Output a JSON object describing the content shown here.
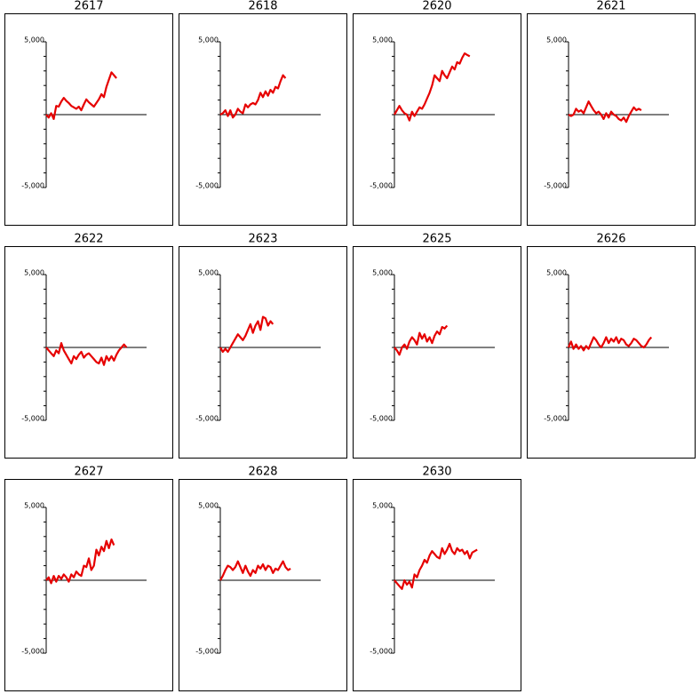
{
  "chart_data": [
    {
      "type": "line",
      "title": "2617",
      "xlim": [
        0,
        40
      ],
      "ylim": [
        -5000,
        5000
      ],
      "yticks": [
        {
          "value": 5000,
          "label": "5,000"
        },
        {
          "value": -5000,
          "label": "-5,000"
        }
      ],
      "minor_yticks": [
        -4000,
        -3000,
        -2000,
        -1000,
        0,
        1000,
        2000,
        3000,
        4000
      ],
      "series": [
        {
          "color": "#e60000",
          "values": [
            0,
            -200,
            100,
            -300,
            600,
            550,
            900,
            1150,
            950,
            800,
            600,
            500,
            400,
            550,
            300,
            700,
            1050,
            850,
            700,
            550,
            800,
            1050,
            1400,
            1200,
            1900,
            2400,
            2900,
            2700,
            2500
          ]
        }
      ]
    },
    {
      "type": "line",
      "title": "2618",
      "xlim": [
        0,
        40
      ],
      "ylim": [
        -5000,
        5000
      ],
      "yticks": [
        {
          "value": 5000,
          "label": "5,000"
        },
        {
          "value": -5000,
          "label": "-5,000"
        }
      ],
      "minor_yticks": [
        -4000,
        -3000,
        -2000,
        -1000,
        0,
        1000,
        2000,
        3000,
        4000
      ],
      "series": [
        {
          "color": "#e60000",
          "values": [
            0,
            100,
            300,
            -100,
            300,
            -200,
            0,
            400,
            200,
            100,
            700,
            500,
            700,
            800,
            700,
            1000,
            1500,
            1200,
            1600,
            1300,
            1700,
            1500,
            1900,
            1800,
            2300,
            2700,
            2500
          ]
        }
      ]
    },
    {
      "type": "line",
      "title": "2620",
      "xlim": [
        0,
        40
      ],
      "ylim": [
        -5000,
        5000
      ],
      "yticks": [
        {
          "value": 5000,
          "label": "5,000"
        },
        {
          "value": -5000,
          "label": "-5,000"
        }
      ],
      "minor_yticks": [
        -4000,
        -3000,
        -2000,
        -1000,
        0,
        1000,
        2000,
        3000,
        4000
      ],
      "series": [
        {
          "color": "#e60000",
          "values": [
            0,
            300,
            600,
            300,
            100,
            0,
            -400,
            200,
            -100,
            200,
            500,
            400,
            700,
            1100,
            1500,
            2000,
            2700,
            2500,
            2300,
            3000,
            2700,
            2500,
            2900,
            3300,
            3100,
            3600,
            3500,
            3900,
            4200,
            4100,
            4000
          ]
        }
      ]
    },
    {
      "type": "line",
      "title": "2621",
      "xlim": [
        0,
        40
      ],
      "ylim": [
        -5000,
        5000
      ],
      "yticks": [
        {
          "value": 5000,
          "label": "5,000"
        },
        {
          "value": -5000,
          "label": "-5,000"
        }
      ],
      "minor_yticks": [
        -4000,
        -3000,
        -2000,
        -1000,
        0,
        1000,
        2000,
        3000,
        4000
      ],
      "series": [
        {
          "color": "#e60000",
          "values": [
            0,
            -100,
            0,
            400,
            200,
            300,
            100,
            500,
            900,
            600,
            300,
            100,
            200,
            0,
            -300,
            100,
            -200,
            200,
            0,
            -100,
            -300,
            -400,
            -200,
            -500,
            -100,
            200,
            500,
            300,
            400,
            300
          ]
        }
      ]
    },
    {
      "type": "line",
      "title": "2622",
      "xlim": [
        0,
        40
      ],
      "ylim": [
        -5000,
        5000
      ],
      "yticks": [
        {
          "value": 5000,
          "label": "5,000"
        },
        {
          "value": -5000,
          "label": "-5,000"
        }
      ],
      "minor_yticks": [
        -4000,
        -3000,
        -2000,
        -1000,
        0,
        1000,
        2000,
        3000,
        4000
      ],
      "series": [
        {
          "color": "#e60000",
          "values": [
            0,
            -200,
            -400,
            -600,
            -200,
            -400,
            300,
            -200,
            -500,
            -800,
            -1100,
            -600,
            -800,
            -500,
            -300,
            -700,
            -500,
            -400,
            -600,
            -800,
            -1000,
            -1100,
            -700,
            -1200,
            -600,
            -900,
            -600,
            -900,
            -500,
            -200,
            0,
            200,
            0
          ]
        }
      ]
    },
    {
      "type": "line",
      "title": "2623",
      "xlim": [
        0,
        40
      ],
      "ylim": [
        -5000,
        5000
      ],
      "yticks": [
        {
          "value": 5000,
          "label": "5,000"
        },
        {
          "value": -5000,
          "label": "-5,000"
        }
      ],
      "minor_yticks": [
        -4000,
        -3000,
        -2000,
        -1000,
        0,
        1000,
        2000,
        3000,
        4000
      ],
      "series": [
        {
          "color": "#e60000",
          "values": [
            0,
            -300,
            -100,
            -300,
            0,
            300,
            600,
            900,
            700,
            500,
            800,
            1200,
            1600,
            1000,
            1500,
            1800,
            1200,
            2100,
            2000,
            1500,
            1800,
            1600
          ]
        }
      ]
    },
    {
      "type": "line",
      "title": "2625",
      "xlim": [
        0,
        40
      ],
      "ylim": [
        -5000,
        5000
      ],
      "yticks": [
        {
          "value": 5000,
          "label": "5,000"
        },
        {
          "value": -5000,
          "label": "-5,000"
        }
      ],
      "minor_yticks": [
        -4000,
        -3000,
        -2000,
        -1000,
        0,
        1000,
        2000,
        3000,
        4000
      ],
      "series": [
        {
          "color": "#e60000",
          "values": [
            0,
            -200,
            -500,
            0,
            200,
            -100,
            400,
            700,
            500,
            200,
            1000,
            600,
            900,
            400,
            700,
            300,
            800,
            1100,
            900,
            1400,
            1300,
            1500
          ]
        }
      ]
    },
    {
      "type": "line",
      "title": "2626",
      "xlim": [
        0,
        40
      ],
      "ylim": [
        -5000,
        5000
      ],
      "yticks": [
        {
          "value": 5000,
          "label": "5,000"
        },
        {
          "value": -5000,
          "label": "-5,000"
        }
      ],
      "minor_yticks": [
        -4000,
        -3000,
        -2000,
        -1000,
        0,
        1000,
        2000,
        3000,
        4000
      ],
      "series": [
        {
          "color": "#e60000",
          "values": [
            0,
            400,
            -100,
            200,
            -100,
            100,
            -200,
            100,
            -100,
            300,
            700,
            500,
            200,
            0,
            300,
            700,
            300,
            600,
            400,
            700,
            300,
            600,
            500,
            200,
            100,
            300,
            600,
            500,
            300,
            100,
            0,
            200,
            500,
            700
          ]
        }
      ]
    },
    {
      "type": "line",
      "title": "2627",
      "xlim": [
        0,
        40
      ],
      "ylim": [
        -5000,
        5000
      ],
      "yticks": [
        {
          "value": 5000,
          "label": "5,000"
        },
        {
          "value": -5000,
          "label": "-5,000"
        }
      ],
      "minor_yticks": [
        -4000,
        -3000,
        -2000,
        -1000,
        0,
        1000,
        2000,
        3000,
        4000
      ],
      "series": [
        {
          "color": "#e60000",
          "values": [
            0,
            200,
            -200,
            300,
            -100,
            300,
            100,
            400,
            200,
            -100,
            400,
            200,
            600,
            400,
            300,
            1000,
            900,
            1500,
            700,
            1000,
            2100,
            1700,
            2300,
            2000,
            2700,
            2200,
            2800,
            2400
          ]
        }
      ]
    },
    {
      "type": "line",
      "title": "2628",
      "xlim": [
        0,
        40
      ],
      "ylim": [
        -5000,
        5000
      ],
      "yticks": [
        {
          "value": 5000,
          "label": "5,000"
        },
        {
          "value": -5000,
          "label": "-5,000"
        }
      ],
      "minor_yticks": [
        -4000,
        -3000,
        -2000,
        -1000,
        0,
        1000,
        2000,
        3000,
        4000
      ],
      "series": [
        {
          "color": "#e60000",
          "values": [
            0,
            300,
            700,
            1000,
            900,
            700,
            900,
            1300,
            900,
            500,
            1000,
            600,
            300,
            700,
            500,
            1000,
            800,
            1100,
            700,
            1000,
            900,
            500,
            800,
            700,
            1000,
            1300,
            900,
            700,
            800
          ]
        }
      ]
    },
    {
      "type": "line",
      "title": "2630",
      "xlim": [
        0,
        40
      ],
      "ylim": [
        -5000,
        5000
      ],
      "yticks": [
        {
          "value": 5000,
          "label": "5,000"
        },
        {
          "value": -5000,
          "label": "-5,000"
        }
      ],
      "minor_yticks": [
        -4000,
        -3000,
        -2000,
        -1000,
        0,
        1000,
        2000,
        3000,
        4000
      ],
      "series": [
        {
          "color": "#e60000",
          "values": [
            0,
            -200,
            -400,
            -600,
            0,
            -300,
            -100,
            -500,
            400,
            200,
            700,
            1000,
            1400,
            1200,
            1700,
            2000,
            1800,
            1600,
            1500,
            2200,
            1800,
            2100,
            2500,
            2000,
            1800,
            2200,
            2000,
            2100,
            1800,
            2000,
            1500,
            1900,
            2000,
            2100
          ]
        }
      ]
    }
  ]
}
